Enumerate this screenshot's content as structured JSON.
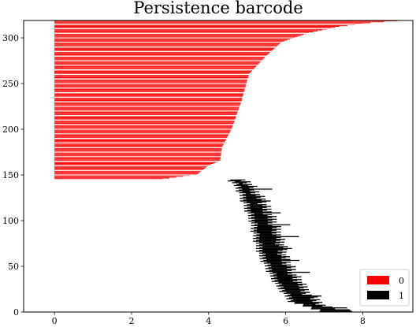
{
  "chart_data": {
    "type": "bar",
    "orientation": "horizontal",
    "title": "Persistence barcode",
    "xlabel": "",
    "ylabel": "",
    "xlim": [
      -0.8,
      9.3
    ],
    "ylim": [
      0,
      319
    ],
    "xticks": [
      "0",
      "2",
      "4",
      "6",
      "8"
    ],
    "yticks": [
      "0",
      "50",
      "100",
      "150",
      "200",
      "250",
      "300"
    ],
    "grid": false,
    "legend_position": "bottom-right",
    "series": [
      {
        "name": "0",
        "color": "#ff0000",
        "count": 174,
        "bars_start_index": 145,
        "birth": 0,
        "death_profile": [
          [
            145,
            2.8
          ],
          [
            150,
            3.7
          ],
          [
            160,
            4.0
          ],
          [
            165,
            4.3
          ],
          [
            180,
            4.35
          ],
          [
            200,
            4.6
          ],
          [
            230,
            4.85
          ],
          [
            260,
            5.05
          ],
          [
            280,
            5.5
          ],
          [
            295,
            5.9
          ],
          [
            305,
            6.6
          ],
          [
            312,
            7.4
          ],
          [
            316,
            8.2
          ],
          [
            318,
            8.9
          ]
        ]
      },
      {
        "name": "1",
        "color": "#000000",
        "count": 145,
        "bars_start_index": 0,
        "birth_profile": [
          [
            0,
            7.0
          ],
          [
            5,
            6.6
          ],
          [
            10,
            6.2
          ],
          [
            20,
            6.0
          ],
          [
            30,
            5.8
          ],
          [
            45,
            5.6
          ],
          [
            60,
            5.4
          ],
          [
            80,
            5.25
          ],
          [
            100,
            5.15
          ],
          [
            120,
            4.95
          ],
          [
            135,
            4.8
          ],
          [
            144,
            4.6
          ]
        ],
        "death_profile": [
          [
            0,
            7.8
          ],
          [
            5,
            7.0
          ],
          [
            10,
            6.8
          ],
          [
            20,
            6.5
          ],
          [
            30,
            6.3
          ],
          [
            45,
            6.1
          ],
          [
            60,
            5.9
          ],
          [
            80,
            5.8
          ],
          [
            100,
            5.6
          ],
          [
            120,
            5.35
          ],
          [
            135,
            5.1
          ],
          [
            144,
            4.9
          ]
        ]
      }
    ]
  }
}
